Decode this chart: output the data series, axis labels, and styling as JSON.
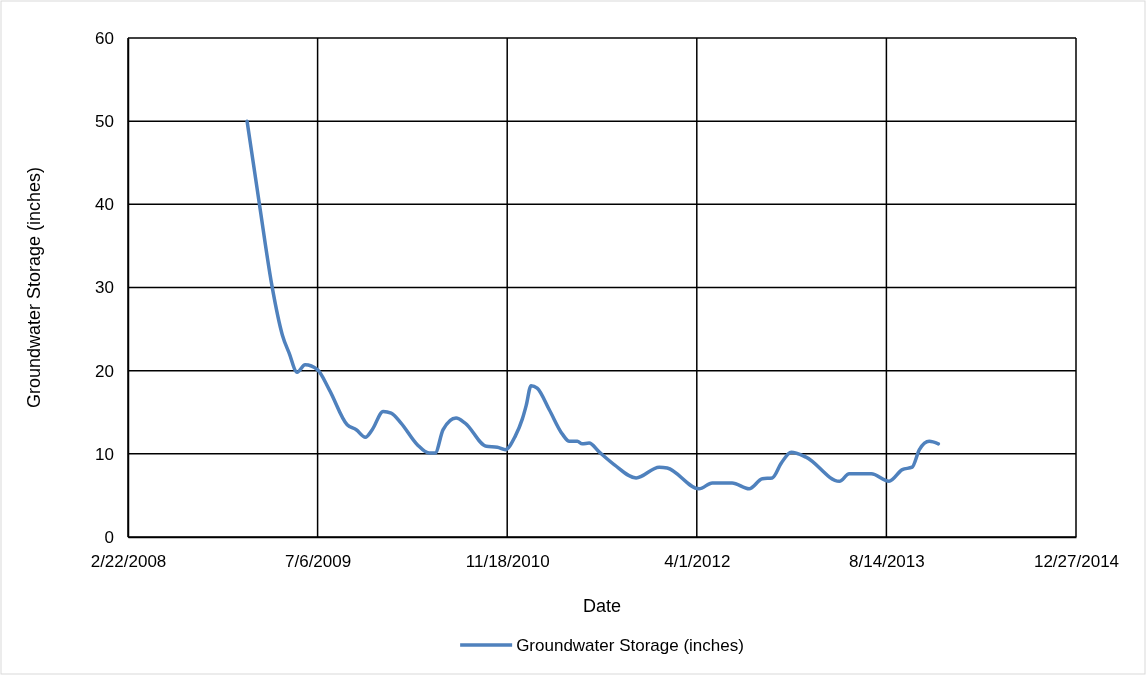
{
  "chart_data": {
    "type": "line",
    "xlabel": "Date",
    "ylabel": "Groundwater Storage (inches)",
    "xlim": [
      "2008-02-22",
      "2014-12-27"
    ],
    "xticks": [
      {
        "value": "2008-02-22",
        "label": "2/22/2008"
      },
      {
        "value": "2009-07-06",
        "label": "7/6/2009"
      },
      {
        "value": "2010-11-18",
        "label": "11/18/2010"
      },
      {
        "value": "2012-04-01",
        "label": "4/1/2012"
      },
      {
        "value": "2013-08-14",
        "label": "8/14/2013"
      },
      {
        "value": "2014-12-27",
        "label": "12/27/2014"
      }
    ],
    "ylim": [
      0,
      60
    ],
    "yticks": [
      0,
      10,
      20,
      30,
      40,
      50,
      60
    ],
    "grid": true,
    "legend": "bottom",
    "line_style": "solid",
    "marker": "none",
    "x": [
      "2009-01-01",
      "2009-02-02",
      "2009-03-08",
      "2009-04-04",
      "2009-04-22",
      "2009-05-13",
      "2009-06-03",
      "2009-07-06",
      "2009-08-06",
      "2009-09-22",
      "2009-10-16",
      "2009-11-09",
      "2009-11-27",
      "2009-12-26",
      "2010-01-16",
      "2010-02-11",
      "2010-03-26",
      "2010-04-26",
      "2010-05-12",
      "2010-06-02",
      "2010-07-06",
      "2010-07-30",
      "2010-09-24",
      "2010-10-23",
      "2010-11-13",
      "2010-12-09",
      "2010-12-28",
      "2011-01-07",
      "2011-01-20",
      "2011-02-05",
      "2011-03-09",
      "2011-04-12",
      "2011-05-01",
      "2011-05-22",
      "2011-06-04",
      "2011-06-22",
      "2011-07-19",
      "2011-08-27",
      "2011-10-24",
      "2011-12-24",
      "2012-01-14",
      "2012-04-07",
      "2012-05-12",
      "2012-07-03",
      "2012-08-17",
      "2012-09-21",
      "2012-10-17",
      "2012-11-10",
      "2012-12-06",
      "2013-01-14",
      "2013-04-12",
      "2013-05-08",
      "2013-07-05",
      "2013-08-21",
      "2013-09-25",
      "2013-10-21",
      "2013-11-09",
      "2013-12-05",
      "2013-12-29"
    ],
    "series": [
      {
        "name": "Groundwater Storage (inches)",
        "color": "#4f81bd",
        "values": [
          50,
          40.2,
          30.1,
          24.3,
          22.1,
          19.8,
          20.7,
          20.1,
          17.7,
          13.5,
          12.9,
          12.0,
          12.9,
          15.1,
          14.9,
          13.7,
          11.1,
          10.1,
          10.1,
          12.9,
          14.3,
          13.7,
          10.9,
          10.8,
          10.5,
          12.1,
          14.2,
          15.8,
          18.2,
          17.9,
          15.3,
          12.4,
          11.5,
          11.5,
          11.2,
          11.3,
          10.2,
          8.7,
          7.1,
          8.4,
          8.3,
          5.8,
          6.5,
          6.5,
          5.8,
          7.0,
          7.1,
          8.9,
          10.2,
          9.6,
          6.7,
          7.6,
          7.6,
          6.7,
          8.1,
          8.4,
          10.5,
          11.5,
          11.2
        ]
      }
    ]
  }
}
